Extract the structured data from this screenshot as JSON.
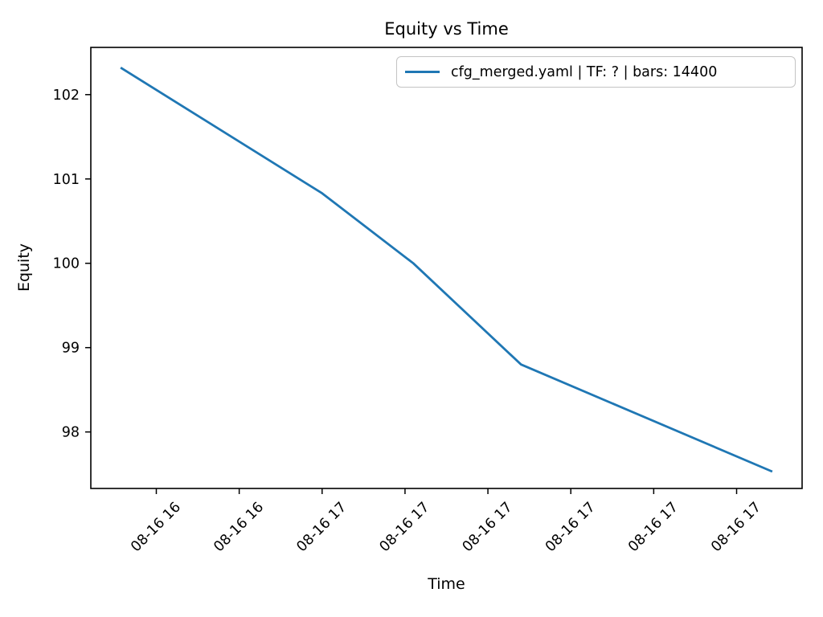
{
  "chart_data": {
    "type": "line",
    "title": "Equity vs Time",
    "xlabel": "Time",
    "ylabel": "Equity",
    "grid": false,
    "legend_position": "upper right",
    "legend_entries": [
      {
        "label": "cfg_merged.yaml | TF: ? | bars: 14400",
        "color": "#1f77b4"
      }
    ],
    "x_unit": "minutes after 08-16 16:00 (estimated from tick spacing)",
    "xlim": [
      32.1,
      117.9
    ],
    "ylim": [
      97.33,
      102.56
    ],
    "x_tick_rotation": 45,
    "x_ticks": [
      {
        "x": 40,
        "label": "08-16 16"
      },
      {
        "x": 50,
        "label": "08-16 16"
      },
      {
        "x": 60,
        "label": "08-16 17"
      },
      {
        "x": 70,
        "label": "08-16 17"
      },
      {
        "x": 80,
        "label": "08-16 17"
      },
      {
        "x": 90,
        "label": "08-16 17"
      },
      {
        "x": 100,
        "label": "08-16 17"
      },
      {
        "x": 110,
        "label": "08-16 17"
      }
    ],
    "y_ticks": [
      {
        "y": 98,
        "label": "98"
      },
      {
        "y": 99,
        "label": "99"
      },
      {
        "y": 100,
        "label": "100"
      },
      {
        "y": 101,
        "label": "101"
      },
      {
        "y": 102,
        "label": "102"
      }
    ],
    "series": [
      {
        "name": "cfg_merged.yaml | TF: ? | bars: 14400",
        "color": "#1f77b4",
        "points": [
          {
            "time": "08-16 16:36",
            "x": 35.7,
            "equity": 102.32
          },
          {
            "time": "08-16 17:00",
            "x": 60,
            "equity": 100.83
          },
          {
            "time": "08-16 17:11",
            "x": 71,
            "equity": 100.0
          },
          {
            "time": "08-16 17:24",
            "x": 84,
            "equity": 98.8
          },
          {
            "time": "08-16 17:54",
            "x": 114.3,
            "equity": 97.53
          }
        ]
      }
    ]
  },
  "colors": {
    "background": "#ffffff",
    "axis": "#000000",
    "text": "#000000",
    "series_line": "#1f77b4",
    "legend_border": "#c4c4c4"
  }
}
